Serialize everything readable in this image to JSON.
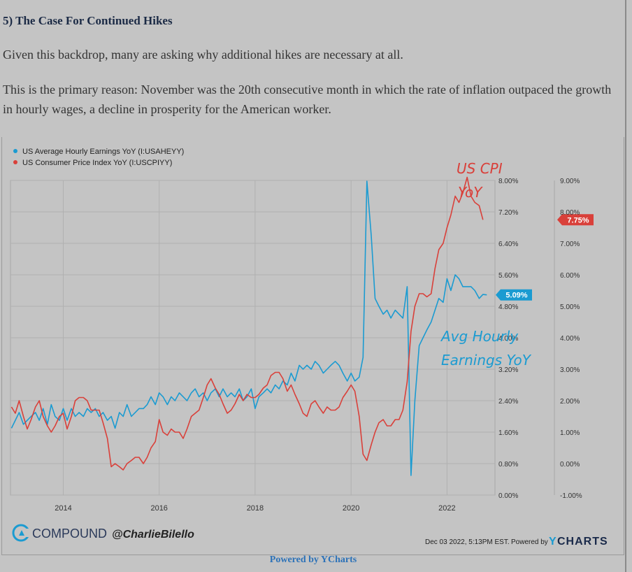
{
  "article": {
    "heading": "5) The Case For Continued Hikes",
    "paragraph_1": "Given this backdrop, many are asking why additional hikes are necessary at all.",
    "paragraph_2": "This is the primary reason: November was the 20th consecutive month in which the rate of inflation outpaced the growth in hourly wages, a decline in prosperity for the American worker."
  },
  "chart_data": {
    "type": "line",
    "title": "",
    "xlabel": "",
    "ylabel": "",
    "x_ticks": [
      "2014",
      "2016",
      "2018",
      "2020",
      "2022"
    ],
    "xlim": [
      2012.9,
      2023.0
    ],
    "y_left": {
      "ticks": [
        "0.00%",
        "0.80%",
        "1.60%",
        "2.40%",
        "3.20%",
        "4.00%",
        "4.80%",
        "5.60%",
        "6.40%",
        "7.20%",
        "8.00%"
      ],
      "ylim": [
        0.0,
        8.0
      ]
    },
    "y_right": {
      "ticks": [
        "-1.00%",
        "0.00%",
        "1.00%",
        "2.00%",
        "3.00%",
        "4.00%",
        "5.00%",
        "6.00%",
        "7.00%",
        "8.00%",
        "9.00%"
      ],
      "ylim": [
        -1.0,
        9.0
      ]
    },
    "grid": true,
    "legend": "top-left",
    "series": [
      {
        "name": "US Average Hourly Earnings YoY (I:USAHEYY)",
        "axis": "left",
        "color": "#1b9bd1",
        "last_label": "5.09%",
        "points": [
          [
            2012.92,
            1.7
          ],
          [
            2013.0,
            1.9
          ],
          [
            2013.08,
            2.1
          ],
          [
            2013.17,
            1.8
          ],
          [
            2013.25,
            1.9
          ],
          [
            2013.33,
            2.0
          ],
          [
            2013.42,
            2.1
          ],
          [
            2013.5,
            1.9
          ],
          [
            2013.58,
            2.2
          ],
          [
            2013.67,
            1.8
          ],
          [
            2013.75,
            2.3
          ],
          [
            2013.83,
            2.0
          ],
          [
            2013.92,
            1.9
          ],
          [
            2014.0,
            2.2
          ],
          [
            2014.08,
            1.9
          ],
          [
            2014.17,
            2.2
          ],
          [
            2014.25,
            2.0
          ],
          [
            2014.33,
            2.1
          ],
          [
            2014.42,
            2.0
          ],
          [
            2014.5,
            2.2
          ],
          [
            2014.58,
            2.1
          ],
          [
            2014.67,
            2.2
          ],
          [
            2014.75,
            2.0
          ],
          [
            2014.83,
            2.1
          ],
          [
            2014.92,
            1.9
          ],
          [
            2015.0,
            2.0
          ],
          [
            2015.08,
            1.7
          ],
          [
            2015.17,
            2.1
          ],
          [
            2015.25,
            2.0
          ],
          [
            2015.33,
            2.3
          ],
          [
            2015.42,
            2.0
          ],
          [
            2015.5,
            2.1
          ],
          [
            2015.58,
            2.2
          ],
          [
            2015.67,
            2.2
          ],
          [
            2015.75,
            2.3
          ],
          [
            2015.83,
            2.5
          ],
          [
            2015.92,
            2.3
          ],
          [
            2016.0,
            2.6
          ],
          [
            2016.08,
            2.5
          ],
          [
            2016.17,
            2.3
          ],
          [
            2016.25,
            2.5
          ],
          [
            2016.33,
            2.4
          ],
          [
            2016.42,
            2.6
          ],
          [
            2016.5,
            2.5
          ],
          [
            2016.58,
            2.4
          ],
          [
            2016.67,
            2.6
          ],
          [
            2016.75,
            2.7
          ],
          [
            2016.83,
            2.5
          ],
          [
            2016.92,
            2.6
          ],
          [
            2017.0,
            2.4
          ],
          [
            2017.08,
            2.6
          ],
          [
            2017.17,
            2.7
          ],
          [
            2017.25,
            2.5
          ],
          [
            2017.33,
            2.7
          ],
          [
            2017.42,
            2.5
          ],
          [
            2017.5,
            2.6
          ],
          [
            2017.58,
            2.5
          ],
          [
            2017.67,
            2.7
          ],
          [
            2017.75,
            2.4
          ],
          [
            2017.83,
            2.5
          ],
          [
            2017.92,
            2.7
          ],
          [
            2018.0,
            2.2
          ],
          [
            2018.08,
            2.5
          ],
          [
            2018.17,
            2.6
          ],
          [
            2018.25,
            2.7
          ],
          [
            2018.33,
            2.6
          ],
          [
            2018.42,
            2.8
          ],
          [
            2018.5,
            2.7
          ],
          [
            2018.58,
            2.9
          ],
          [
            2018.67,
            2.8
          ],
          [
            2018.75,
            3.1
          ],
          [
            2018.83,
            2.9
          ],
          [
            2018.92,
            3.3
          ],
          [
            2019.0,
            3.2
          ],
          [
            2019.08,
            3.3
          ],
          [
            2019.17,
            3.2
          ],
          [
            2019.25,
            3.4
          ],
          [
            2019.33,
            3.3
          ],
          [
            2019.42,
            3.1
          ],
          [
            2019.5,
            3.2
          ],
          [
            2019.58,
            3.3
          ],
          [
            2019.67,
            3.4
          ],
          [
            2019.75,
            3.3
          ],
          [
            2019.83,
            3.1
          ],
          [
            2019.92,
            2.9
          ],
          [
            2020.0,
            3.1
          ],
          [
            2020.08,
            2.9
          ],
          [
            2020.17,
            3.0
          ],
          [
            2020.25,
            3.5
          ],
          [
            2020.33,
            7.98
          ],
          [
            2020.42,
            6.6
          ],
          [
            2020.5,
            5.0
          ],
          [
            2020.58,
            4.8
          ],
          [
            2020.67,
            4.6
          ],
          [
            2020.75,
            4.7
          ],
          [
            2020.83,
            4.5
          ],
          [
            2020.92,
            4.7
          ],
          [
            2021.0,
            4.6
          ],
          [
            2021.08,
            4.5
          ],
          [
            2021.17,
            5.3
          ],
          [
            2021.25,
            0.5
          ],
          [
            2021.33,
            2.4
          ],
          [
            2021.42,
            3.8
          ],
          [
            2021.5,
            4.0
          ],
          [
            2021.58,
            4.2
          ],
          [
            2021.67,
            4.4
          ],
          [
            2021.75,
            4.7
          ],
          [
            2021.83,
            5.0
          ],
          [
            2021.92,
            4.9
          ],
          [
            2022.0,
            5.5
          ],
          [
            2022.08,
            5.2
          ],
          [
            2022.17,
            5.6
          ],
          [
            2022.25,
            5.5
          ],
          [
            2022.33,
            5.3
          ],
          [
            2022.42,
            5.3
          ],
          [
            2022.5,
            5.3
          ],
          [
            2022.58,
            5.2
          ],
          [
            2022.67,
            5.0
          ],
          [
            2022.75,
            5.1
          ],
          [
            2022.83,
            5.09
          ]
        ]
      },
      {
        "name": "US Consumer Price Index YoY (I:USCPIYY)",
        "axis": "right",
        "color": "#d9403a",
        "last_label": "7.75%",
        "points": [
          [
            2012.92,
            1.8
          ],
          [
            2013.0,
            1.6
          ],
          [
            2013.08,
            2.0
          ],
          [
            2013.17,
            1.5
          ],
          [
            2013.25,
            1.1
          ],
          [
            2013.33,
            1.4
          ],
          [
            2013.42,
            1.8
          ],
          [
            2013.5,
            2.0
          ],
          [
            2013.58,
            1.5
          ],
          [
            2013.67,
            1.2
          ],
          [
            2013.75,
            1.0
          ],
          [
            2013.83,
            1.2
          ],
          [
            2013.92,
            1.5
          ],
          [
            2014.0,
            1.6
          ],
          [
            2014.08,
            1.1
          ],
          [
            2014.17,
            1.5
          ],
          [
            2014.25,
            2.0
          ],
          [
            2014.33,
            2.1
          ],
          [
            2014.42,
            2.1
          ],
          [
            2014.5,
            2.0
          ],
          [
            2014.58,
            1.7
          ],
          [
            2014.67,
            1.7
          ],
          [
            2014.75,
            1.7
          ],
          [
            2014.83,
            1.3
          ],
          [
            2014.92,
            0.8
          ],
          [
            2015.0,
            -0.1
          ],
          [
            2015.08,
            0.0
          ],
          [
            2015.17,
            -0.1
          ],
          [
            2015.25,
            -0.2
          ],
          [
            2015.33,
            0.0
          ],
          [
            2015.42,
            0.1
          ],
          [
            2015.5,
            0.2
          ],
          [
            2015.58,
            0.2
          ],
          [
            2015.67,
            0.0
          ],
          [
            2015.75,
            0.2
          ],
          [
            2015.83,
            0.5
          ],
          [
            2015.92,
            0.7
          ],
          [
            2016.0,
            1.4
          ],
          [
            2016.08,
            1.0
          ],
          [
            2016.17,
            0.9
          ],
          [
            2016.25,
            1.1
          ],
          [
            2016.33,
            1.0
          ],
          [
            2016.42,
            1.0
          ],
          [
            2016.5,
            0.8
          ],
          [
            2016.58,
            1.1
          ],
          [
            2016.67,
            1.5
          ],
          [
            2016.75,
            1.6
          ],
          [
            2016.83,
            1.7
          ],
          [
            2016.92,
            2.1
          ],
          [
            2017.0,
            2.5
          ],
          [
            2017.08,
            2.7
          ],
          [
            2017.17,
            2.4
          ],
          [
            2017.25,
            2.2
          ],
          [
            2017.33,
            1.9
          ],
          [
            2017.42,
            1.6
          ],
          [
            2017.5,
            1.7
          ],
          [
            2017.58,
            1.9
          ],
          [
            2017.67,
            2.2
          ],
          [
            2017.75,
            2.0
          ],
          [
            2017.83,
            2.2
          ],
          [
            2017.92,
            2.1
          ],
          [
            2018.0,
            2.1
          ],
          [
            2018.08,
            2.2
          ],
          [
            2018.17,
            2.4
          ],
          [
            2018.25,
            2.5
          ],
          [
            2018.33,
            2.8
          ],
          [
            2018.42,
            2.9
          ],
          [
            2018.5,
            2.9
          ],
          [
            2018.58,
            2.7
          ],
          [
            2018.67,
            2.3
          ],
          [
            2018.75,
            2.5
          ],
          [
            2018.83,
            2.2
          ],
          [
            2018.92,
            1.9
          ],
          [
            2019.0,
            1.6
          ],
          [
            2019.08,
            1.5
          ],
          [
            2019.17,
            1.9
          ],
          [
            2019.25,
            2.0
          ],
          [
            2019.33,
            1.8
          ],
          [
            2019.42,
            1.6
          ],
          [
            2019.5,
            1.8
          ],
          [
            2019.58,
            1.7
          ],
          [
            2019.67,
            1.7
          ],
          [
            2019.75,
            1.8
          ],
          [
            2019.83,
            2.1
          ],
          [
            2019.92,
            2.3
          ],
          [
            2020.0,
            2.5
          ],
          [
            2020.08,
            2.3
          ],
          [
            2020.17,
            1.5
          ],
          [
            2020.25,
            0.3
          ],
          [
            2020.33,
            0.1
          ],
          [
            2020.42,
            0.6
          ],
          [
            2020.5,
            1.0
          ],
          [
            2020.58,
            1.3
          ],
          [
            2020.67,
            1.4
          ],
          [
            2020.75,
            1.2
          ],
          [
            2020.83,
            1.2
          ],
          [
            2020.92,
            1.4
          ],
          [
            2021.0,
            1.4
          ],
          [
            2021.08,
            1.7
          ],
          [
            2021.17,
            2.6
          ],
          [
            2021.25,
            4.2
          ],
          [
            2021.33,
            5.0
          ],
          [
            2021.42,
            5.4
          ],
          [
            2021.5,
            5.4
          ],
          [
            2021.58,
            5.3
          ],
          [
            2021.67,
            5.4
          ],
          [
            2021.75,
            6.2
          ],
          [
            2021.83,
            6.8
          ],
          [
            2021.92,
            7.0
          ],
          [
            2022.0,
            7.5
          ],
          [
            2022.08,
            7.9
          ],
          [
            2022.17,
            8.5
          ],
          [
            2022.25,
            8.3
          ],
          [
            2022.33,
            8.6
          ],
          [
            2022.42,
            9.1
          ],
          [
            2022.5,
            8.5
          ],
          [
            2022.58,
            8.3
          ],
          [
            2022.67,
            8.2
          ],
          [
            2022.75,
            7.75
          ]
        ]
      }
    ],
    "annotations": [
      {
        "text": "US CPI",
        "color": "#d9403a"
      },
      {
        "text": "YoY",
        "color": "#d9403a"
      },
      {
        "text": "Avg Hourly",
        "color": "#1b9bd1"
      },
      {
        "text": "Earnings YoY",
        "color": "#1b9bd1"
      }
    ],
    "branding": {
      "logo_text": "COMPOUND",
      "handle": "@CharlieBilello",
      "timestamp": "Dec 03 2022, 5:13PM EST.",
      "powered_by": "Powered by",
      "ycharts": "YCHARTS"
    }
  },
  "footer": {
    "link_text": "Powered by YCharts"
  }
}
